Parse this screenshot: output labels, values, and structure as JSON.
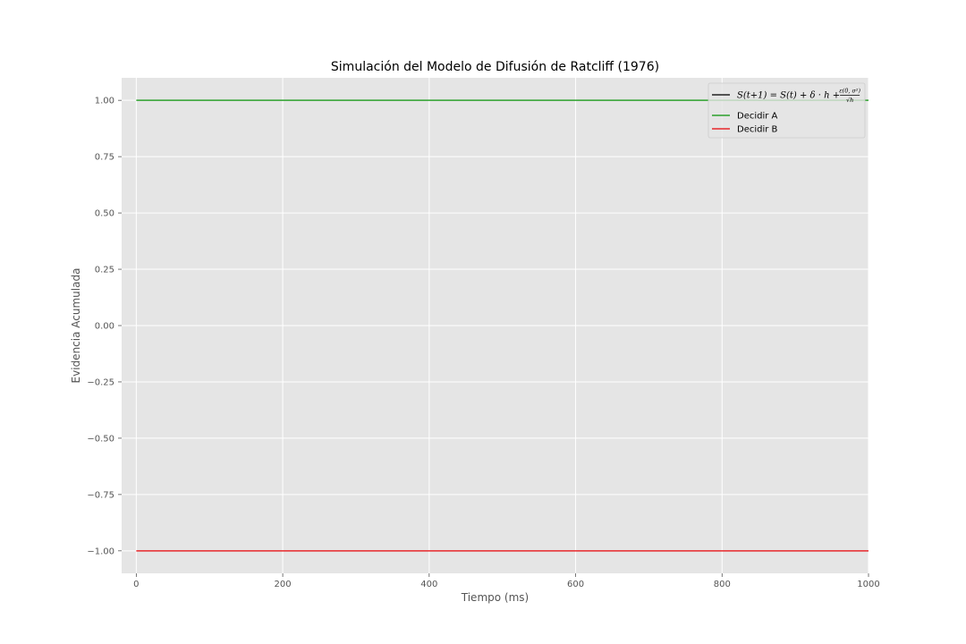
{
  "chart_data": {
    "type": "line",
    "title": "Simulación del Modelo de Difusión de Ratcliff (1976)",
    "xlabel": "Tiempo (ms)",
    "ylabel": "Evidencia Acumulada",
    "xlim": [
      -20,
      1000
    ],
    "ylim": [
      -1.1,
      1.1
    ],
    "x_ticks": [
      0,
      200,
      400,
      600,
      800,
      1000
    ],
    "y_ticks": [
      1.0,
      0.75,
      0.5,
      0.25,
      0.0,
      -0.25,
      -0.5,
      -0.75,
      -1.0
    ],
    "x_tick_labels": [
      "0",
      "200",
      "400",
      "600",
      "800",
      "1000"
    ],
    "y_tick_labels": [
      "1.00",
      "0.75",
      "0.50",
      "0.25",
      "0.00",
      "−0.25",
      "−0.50",
      "−0.75",
      "−1.00"
    ],
    "grid": true,
    "legend_position": "top-right",
    "series": [
      {
        "name": "S(t+1) = S(t) + δ·h + ε(0,σ²)/√h",
        "color": "#222222",
        "x": [],
        "y": []
      },
      {
        "name": "Decidir A",
        "color": "#2ca02c",
        "x": [
          0,
          1000
        ],
        "y": [
          1.0,
          1.0
        ]
      },
      {
        "name": "Decidir B",
        "color": "#e8282b",
        "x": [
          0,
          1000
        ],
        "y": [
          -1.0,
          -1.0
        ]
      }
    ],
    "legend_formula": {
      "lhs": "S(t+1) = S(t) + δ · h + ",
      "numerator": "ε(0, σ²)",
      "denominator": "√h"
    },
    "colors": {
      "plot_background": "#e5e5e5",
      "grid": "#ffffff",
      "tick_text": "#555555"
    }
  }
}
